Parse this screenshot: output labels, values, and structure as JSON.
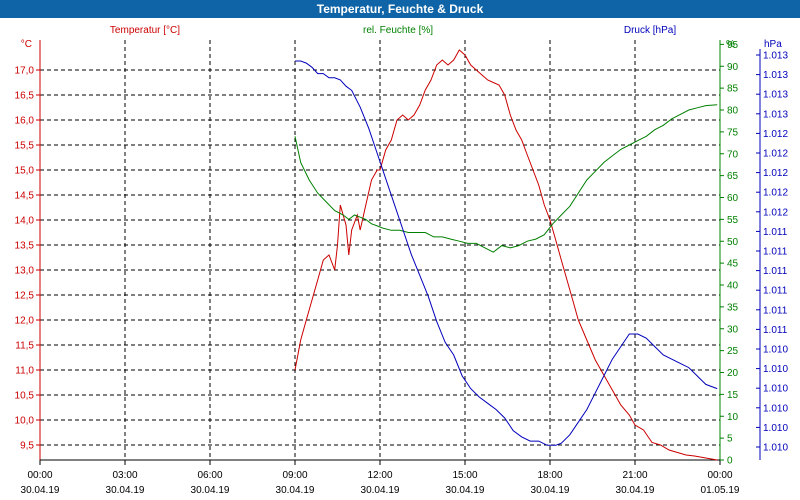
{
  "chart_data": {
    "type": "line",
    "title": "Temperatur, Feuchte & Druck",
    "legend": {
      "temperature": "Temperatur [°C]",
      "humidity": "rel. Feuchte [%]",
      "pressure": "Druck [hPa]"
    },
    "axes": {
      "left": {
        "unit": "°C",
        "color": "#cc0000",
        "range": [
          9.2,
          17.6
        ],
        "ticks": [
          "9,5",
          "10,0",
          "10,5",
          "11,0",
          "11,5",
          "12,0",
          "12,5",
          "13,0",
          "13,5",
          "14,0",
          "14,5",
          "15,0",
          "15,5",
          "16,0",
          "16,5",
          "17,0"
        ]
      },
      "middle": {
        "unit": "%",
        "color": "#008000",
        "range": [
          0,
          96
        ],
        "ticks": [
          "0",
          "5",
          "10",
          "15",
          "20",
          "25",
          "30",
          "35",
          "40",
          "45",
          "50",
          "55",
          "60",
          "65",
          "70",
          "75",
          "80",
          "85",
          "90",
          "95"
        ]
      },
      "right": {
        "unit": "hPa",
        "color": "#0000bb",
        "ticks": [
          "1.010",
          "1.010",
          "1.010",
          "1.010",
          "1.010",
          "1.010",
          "1.011",
          "1.011",
          "1.011",
          "1.011",
          "1.011",
          "1.011",
          "1.012",
          "1.012",
          "1.012",
          "1.012",
          "1.012",
          "1.013",
          "1.013",
          "1.013",
          "1.013"
        ]
      }
    },
    "x_ticks": [
      {
        "time": "00:00",
        "date": "30.04.19"
      },
      {
        "time": "03:00",
        "date": "30.04.19"
      },
      {
        "time": "06:00",
        "date": "30.04.19"
      },
      {
        "time": "09:00",
        "date": "30.04.19"
      },
      {
        "time": "12:00",
        "date": "30.04.19"
      },
      {
        "time": "15:00",
        "date": "30.04.19"
      },
      {
        "time": "18:00",
        "date": "30.04.19"
      },
      {
        "time": "21:00",
        "date": "30.04.19"
      },
      {
        "time": "00:00",
        "date": "01.05.19"
      }
    ],
    "x_range_hours": [
      0,
      24
    ],
    "series": [
      {
        "name": "Temperatur",
        "axis": "left",
        "color": "#cc0000",
        "x_hours": [
          9.0,
          9.2,
          9.4,
          9.6,
          9.8,
          10.0,
          10.2,
          10.4,
          10.5,
          10.6,
          10.8,
          10.9,
          11.0,
          11.2,
          11.3,
          11.5,
          11.7,
          11.9,
          12.0,
          12.2,
          12.4,
          12.6,
          12.8,
          13.0,
          13.2,
          13.4,
          13.6,
          13.8,
          14.0,
          14.2,
          14.4,
          14.6,
          14.8,
          15.0,
          15.2,
          15.4,
          15.6,
          15.8,
          16.0,
          16.2,
          16.4,
          16.6,
          16.8,
          17.0,
          17.2,
          17.4,
          17.6,
          17.8,
          18.0,
          18.2,
          18.4,
          18.6,
          18.8,
          19.0,
          19.3,
          19.6,
          19.9,
          20.2,
          20.5,
          20.8,
          21.0,
          21.3,
          21.6,
          21.9,
          22.2,
          22.5,
          22.8,
          23.1,
          23.4,
          23.7,
          23.9
        ],
        "values": [
          11.0,
          11.6,
          12.0,
          12.4,
          12.8,
          13.2,
          13.3,
          13.0,
          13.5,
          14.3,
          13.9,
          13.3,
          13.8,
          14.1,
          13.8,
          14.3,
          14.8,
          15.0,
          15.0,
          15.4,
          15.6,
          16.0,
          16.1,
          16.0,
          16.1,
          16.3,
          16.6,
          16.8,
          17.1,
          17.2,
          17.1,
          17.2,
          17.4,
          17.3,
          17.1,
          17.0,
          16.9,
          16.8,
          16.75,
          16.7,
          16.5,
          16.1,
          15.8,
          15.6,
          15.3,
          15.0,
          14.7,
          14.3,
          14.0,
          13.6,
          13.2,
          12.8,
          12.4,
          12.0,
          11.6,
          11.2,
          10.9,
          10.6,
          10.3,
          10.1,
          9.9,
          9.8,
          9.55,
          9.5,
          9.4,
          9.35,
          9.3,
          9.28,
          9.25,
          9.22,
          9.2
        ]
      },
      {
        "name": "rel. Feuchte",
        "axis": "middle",
        "color": "#008000",
        "x_hours": [
          9.0,
          9.2,
          9.5,
          9.8,
          10.1,
          10.4,
          10.7,
          10.9,
          11.1,
          11.3,
          11.5,
          11.7,
          11.9,
          12.1,
          12.4,
          12.7,
          13.0,
          13.3,
          13.6,
          13.9,
          14.2,
          14.5,
          14.8,
          15.1,
          15.4,
          15.7,
          16.0,
          16.3,
          16.6,
          16.9,
          17.2,
          17.5,
          17.8,
          18.1,
          18.4,
          18.7,
          19.0,
          19.3,
          19.6,
          19.9,
          20.2,
          20.5,
          20.8,
          21.1,
          21.4,
          21.7,
          22.0,
          22.3,
          22.6,
          22.9,
          23.2,
          23.5,
          23.9
        ],
        "values": [
          74,
          68,
          64,
          61,
          59,
          57,
          56,
          55,
          56,
          55.5,
          55,
          54,
          53.5,
          53,
          52.5,
          52.5,
          52,
          52,
          52,
          51,
          51,
          50.5,
          50,
          49.5,
          49.5,
          48.5,
          47.5,
          49,
          48.5,
          49,
          50,
          50.5,
          51.5,
          54,
          56,
          58,
          61,
          64,
          66,
          68,
          69.5,
          71,
          72,
          73,
          74,
          75.5,
          76.5,
          78,
          79,
          80,
          80.5,
          81,
          81.2
        ]
      },
      {
        "name": "Druck",
        "axis": "right",
        "color": "#0000bb",
        "x_hours": [
          9.0,
          9.2,
          9.4,
          9.6,
          9.8,
          10.0,
          10.2,
          10.4,
          10.6,
          10.8,
          11.0,
          11.3,
          11.6,
          11.9,
          12.2,
          12.5,
          12.8,
          13.1,
          13.4,
          13.7,
          14.0,
          14.3,
          14.6,
          14.9,
          15.2,
          15.5,
          15.8,
          16.1,
          16.4,
          16.7,
          17.0,
          17.3,
          17.6,
          17.9,
          18.2,
          18.4,
          18.7,
          19.0,
          19.3,
          19.6,
          19.9,
          20.2,
          20.5,
          20.8,
          21.1,
          21.4,
          21.7,
          22.0,
          22.3,
          22.6,
          22.9,
          23.2,
          23.5,
          23.9
        ],
        "values_pct_of_plot_height": [
          95,
          95,
          94.5,
          93.5,
          92,
          92,
          91,
          91,
          90.5,
          89,
          88,
          84,
          79,
          73,
          67,
          61,
          55,
          49,
          44,
          39,
          33,
          28,
          25,
          20,
          17,
          15,
          13.5,
          12,
          10,
          7,
          5.5,
          4.5,
          4.5,
          3.5,
          3.5,
          4,
          6,
          9,
          12,
          16,
          20,
          24,
          27,
          30,
          30,
          29,
          27,
          25,
          24,
          23,
          22,
          20,
          18,
          17
        ]
      }
    ]
  }
}
